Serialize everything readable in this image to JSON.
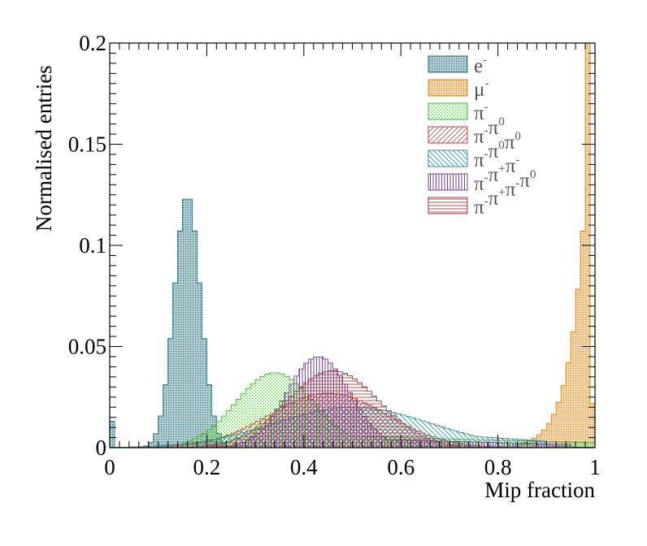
{
  "chart_data": {
    "type": "histogram",
    "xlabel": "Mip fraction",
    "ylabel": "Normalised entries",
    "xlim": [
      0,
      1
    ],
    "ylim": [
      0,
      0.2
    ],
    "x_ticks": [
      "0",
      "0.2",
      "0.4",
      "0.6",
      "0.8",
      "1"
    ],
    "y_ticks": [
      "0",
      "0.05",
      "0.1",
      "0.15",
      "0.2"
    ],
    "legend_position": "top-right",
    "bins": {
      "count": 100,
      "width": 0.01
    },
    "series": [
      {
        "name_base": "e",
        "name_sup": "-",
        "color": "#2f6f78",
        "fill": "#7aa8b2",
        "pattern": "dense-dots",
        "peaks": [
          {
            "center": 0.16,
            "sigma": 0.027,
            "height": 0.125
          }
        ],
        "edge_spike": {
          "x": 0.005,
          "value": 0.013
        }
      },
      {
        "name_base": "μ",
        "name_sup": "-",
        "color": "#d08a1e",
        "fill": "#e8b060",
        "pattern": "fine-dots",
        "exp_rise": {
          "end": 0.995,
          "value_at_end": 0.2,
          "scale": 0.032,
          "offset": 0.002
        },
        "edge_spike": {
          "x": 0.995,
          "value": 0.022
        }
      },
      {
        "name_base": "π",
        "name_sup": "-",
        "color": "#4caa3c",
        "fill": "none",
        "pattern": "sparse-dots",
        "peaks": [
          {
            "center": 0.34,
            "sigma": 0.08,
            "height": 0.037
          }
        ],
        "tail": {
          "level": 0.006,
          "start": 0.45,
          "end": 1.0
        }
      },
      {
        "name_base": "π",
        "name_sup": "-",
        "extra": [
          {
            "base": "π",
            "sup": "0"
          }
        ],
        "color": "#d23c3c",
        "fill": "none",
        "pattern": "diagonal-right",
        "peaks": [
          {
            "center": 0.45,
            "sigma": 0.12,
            "height": 0.027
          }
        ]
      },
      {
        "name_base": "π",
        "name_sup": "-",
        "extra": [
          {
            "base": "π",
            "sup": "0"
          },
          {
            "base": "π",
            "sup": "0"
          }
        ],
        "color": "#3c8c9a",
        "fill": "none",
        "pattern": "diagonal-left",
        "peaks": [
          {
            "center": 0.5,
            "sigma": 0.16,
            "height": 0.02
          }
        ],
        "tail": {
          "level": 0.008,
          "start": 0.6,
          "end": 0.9
        }
      },
      {
        "name_base": "π",
        "name_sup": "-",
        "extra": [
          {
            "base": "π",
            "sup": "+"
          },
          {
            "base": "π",
            "sup": "-"
          }
        ],
        "color": "#7a3ca0",
        "fill": "none",
        "pattern": "vertical-lines",
        "peaks": [
          {
            "center": 0.43,
            "sigma": 0.065,
            "height": 0.045
          }
        ],
        "tail": {
          "level": 0.004,
          "start": 0.55,
          "end": 0.95
        }
      },
      {
        "name_base": "π",
        "name_sup": "-",
        "extra": [
          {
            "base": "π",
            "sup": "+"
          },
          {
            "base": "π",
            "sup": "-"
          },
          {
            "base": "π",
            "sup": "0"
          }
        ],
        "color": "#a33c3c",
        "fill": "none",
        "pattern": "horizontal-lines",
        "peaks": [
          {
            "center": 0.46,
            "sigma": 0.095,
            "height": 0.038
          }
        ]
      }
    ]
  }
}
